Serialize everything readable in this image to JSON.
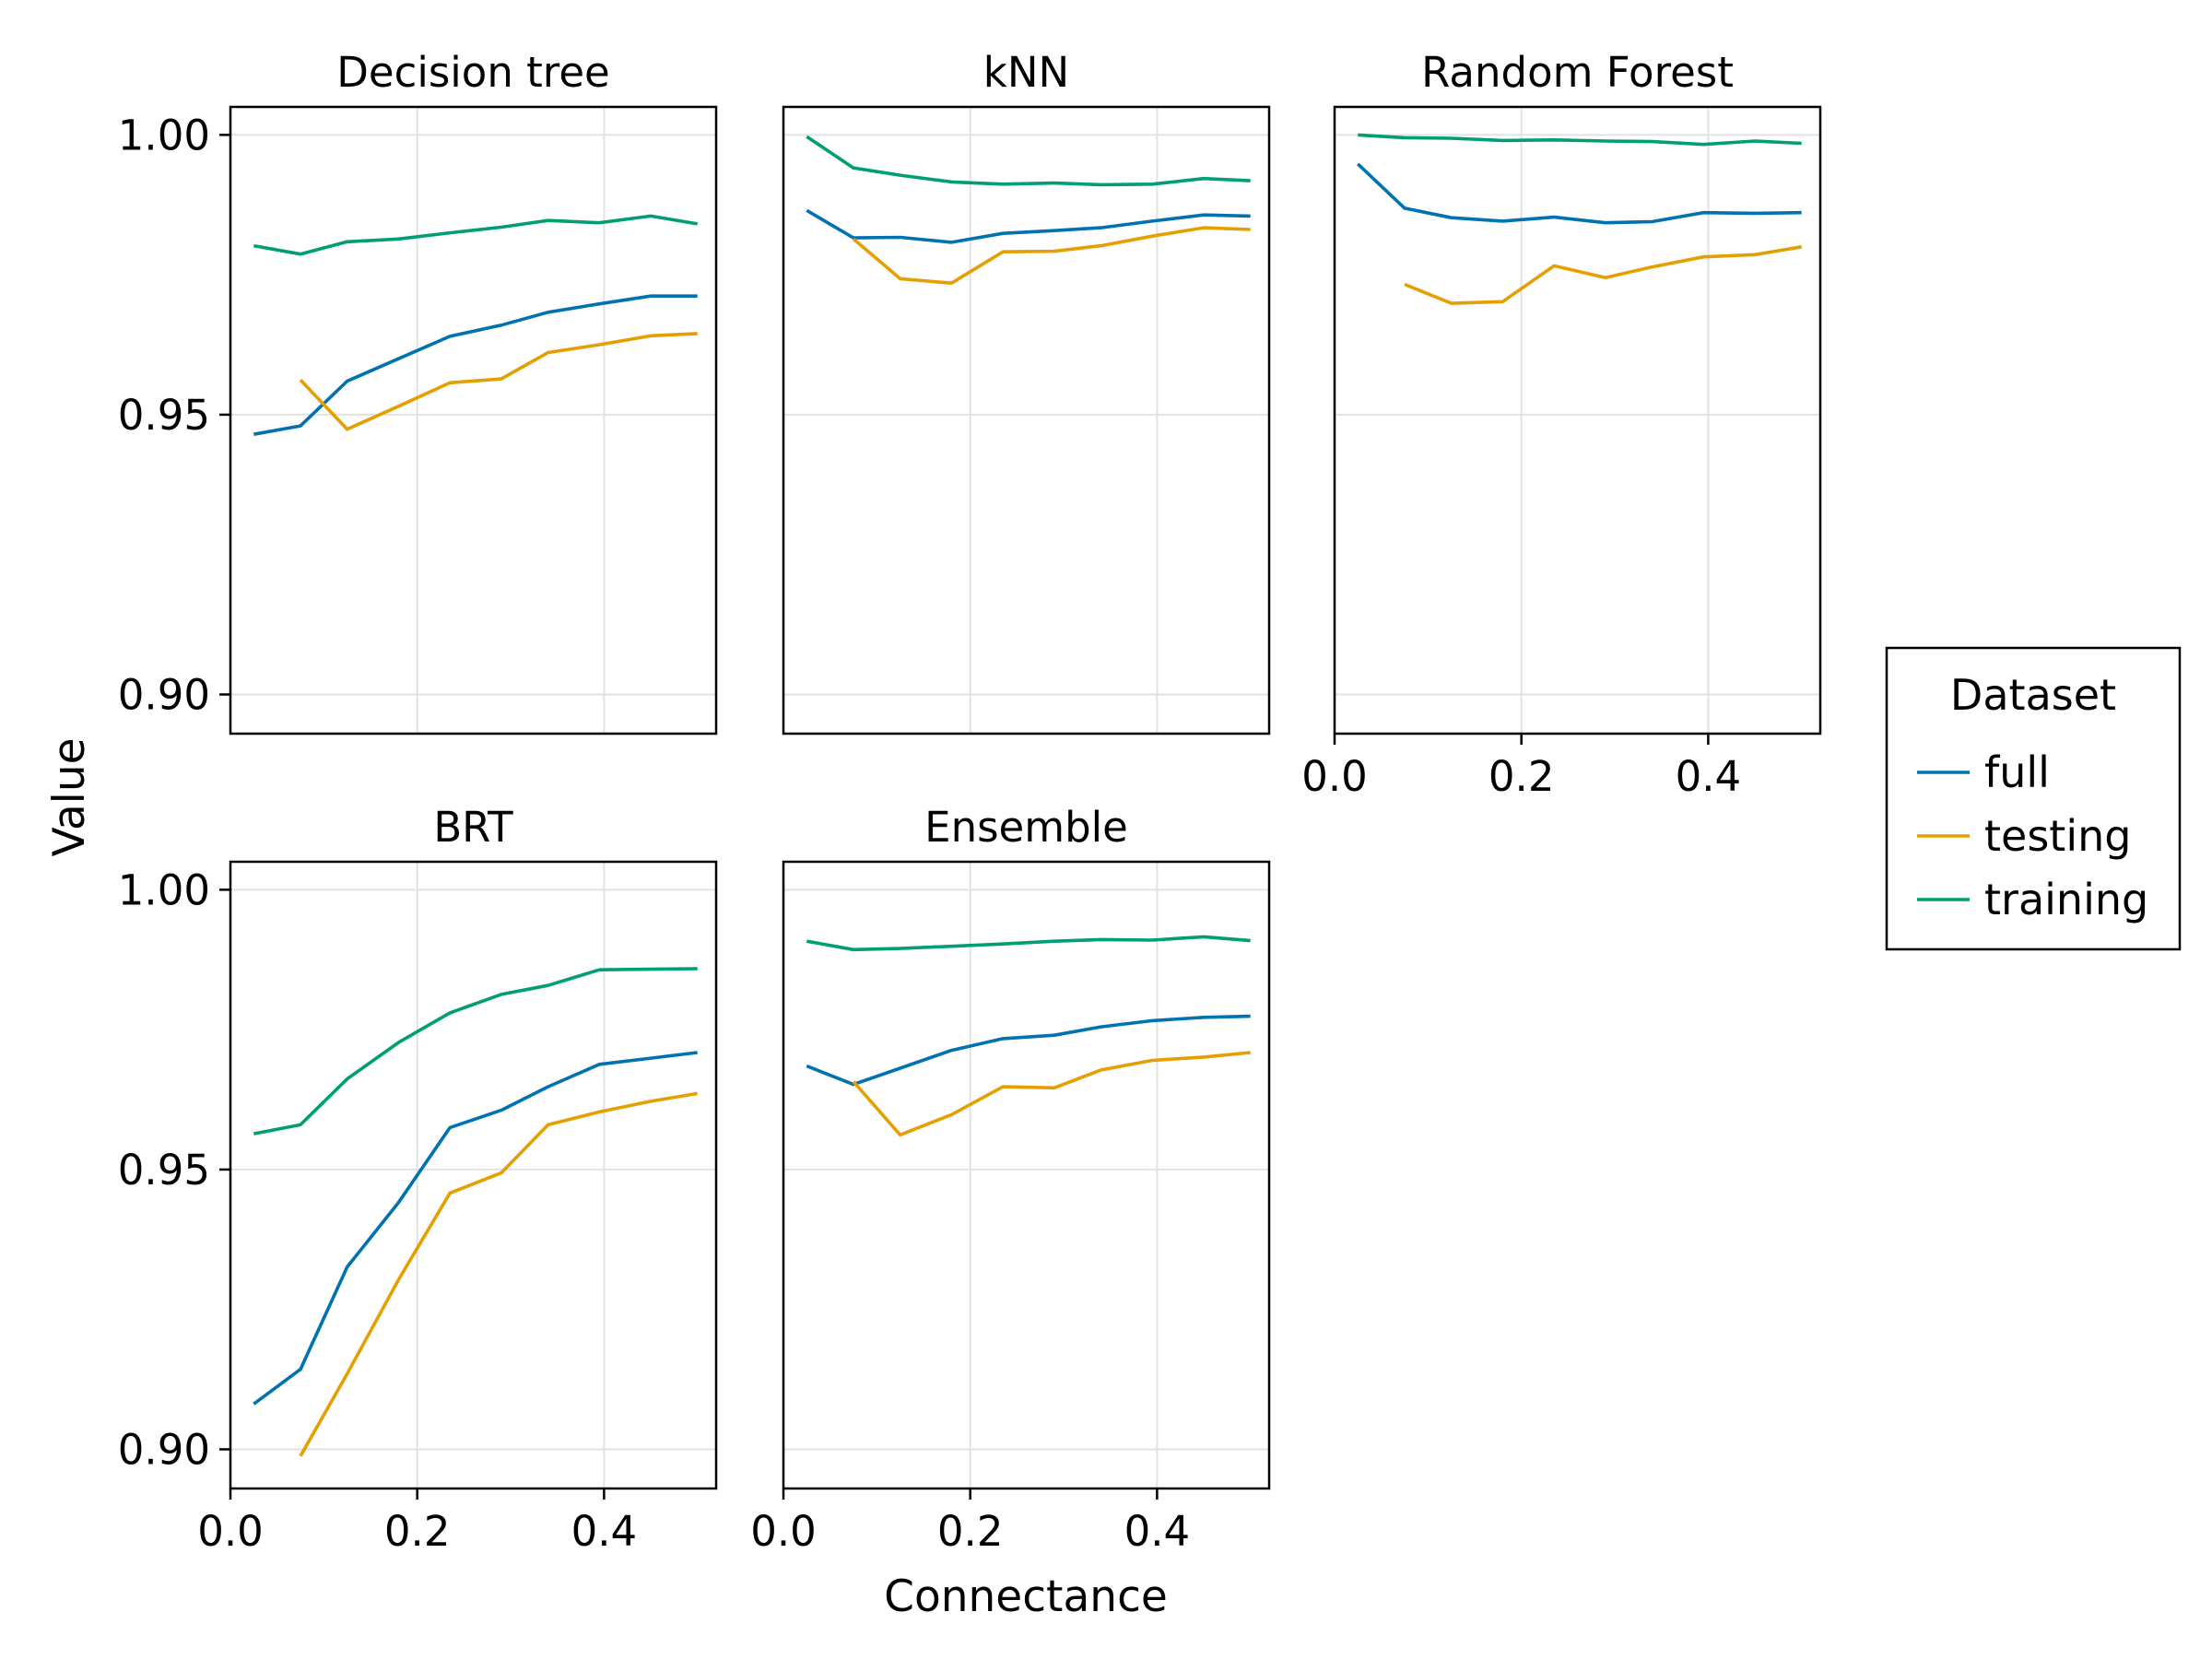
{
  "chart_data": {
    "type": "line",
    "layout": "facet-grid 2x3 (5 panels)",
    "xlabel": "Connectance",
    "ylabel": "Value",
    "xlim": [
      0.0,
      0.52
    ],
    "ylim": [
      0.893,
      1.005
    ],
    "x_ticks": [
      0.0,
      0.2,
      0.4
    ],
    "x_tick_labels": [
      "0.0",
      "0.2",
      "0.4"
    ],
    "y_ticks": [
      0.9,
      0.95,
      1.0
    ],
    "y_tick_labels": [
      "0.90",
      "0.95",
      "1.00"
    ],
    "grid": true,
    "legend": {
      "title": "Dataset",
      "placement": "right",
      "entries": [
        {
          "name": "full",
          "color": "#0072b2"
        },
        {
          "name": "testing",
          "color": "#e69f00"
        },
        {
          "name": "training",
          "color": "#009e73"
        }
      ]
    },
    "x": [
      0.025,
      0.075,
      0.125,
      0.18,
      0.235,
      0.29,
      0.34,
      0.395,
      0.45,
      0.5
    ],
    "panels": [
      {
        "title": "Decision tree",
        "series": [
          {
            "name": "full",
            "values": [
              0.9465,
              0.948,
              0.956,
              0.96,
              0.964,
              0.966,
              0.9683,
              0.9698,
              0.9712,
              0.9712
            ]
          },
          {
            "name": "testing",
            "values": [
              null,
              0.9562,
              0.9474,
              0.9515,
              0.9557,
              0.9564,
              0.9611,
              0.9625,
              0.9641,
              0.9645
            ]
          },
          {
            "name": "training",
            "values": [
              0.9802,
              0.9787,
              0.9809,
              0.9814,
              0.9825,
              0.9835,
              0.9847,
              0.9843,
              0.9855,
              0.9841
            ]
          }
        ]
      },
      {
        "title": "kNN",
        "series": [
          {
            "name": "full",
            "values": [
              0.9865,
              0.9816,
              0.9817,
              0.9808,
              0.9824,
              0.9829,
              0.9834,
              0.9846,
              0.9857,
              0.9855
            ]
          },
          {
            "name": "testing",
            "values": [
              null,
              0.9814,
              0.9743,
              0.9735,
              0.9791,
              0.9792,
              0.9802,
              0.9819,
              0.9834,
              0.9831
            ]
          },
          {
            "name": "training",
            "values": [
              0.9997,
              0.9941,
              0.9928,
              0.9916,
              0.9912,
              0.9914,
              0.9911,
              0.9912,
              0.9922,
              0.9918
            ]
          }
        ]
      },
      {
        "title": "Random Forest",
        "series": [
          {
            "name": "full",
            "values": [
              0.9948,
              0.9869,
              0.9852,
              0.9846,
              0.9853,
              0.9843,
              0.9845,
              0.9861,
              0.986,
              0.9861
            ]
          },
          {
            "name": "testing",
            "values": [
              null,
              0.9733,
              0.9699,
              0.9702,
              0.9766,
              0.9745,
              0.9764,
              0.9782,
              0.9786,
              0.98
            ]
          },
          {
            "name": "training",
            "values": [
              1.0,
              0.9995,
              0.9994,
              0.999,
              0.9991,
              0.9989,
              0.9988,
              0.9983,
              0.9989,
              0.9985
            ]
          }
        ]
      },
      {
        "title": "BRT",
        "series": [
          {
            "name": "full",
            "values": [
              0.9081,
              0.9143,
              0.9326,
              0.9441,
              0.9575,
              0.9606,
              0.9648,
              0.9688,
              0.9699,
              0.9709
            ]
          },
          {
            "name": "testing",
            "values": [
              null,
              0.8988,
              0.9135,
              0.9303,
              0.9458,
              0.9494,
              0.958,
              0.9603,
              0.9622,
              0.9636
            ]
          },
          {
            "name": "training",
            "values": [
              0.9564,
              0.958,
              0.9662,
              0.9727,
              0.978,
              0.9813,
              0.9829,
              0.9857,
              0.9858,
              0.9859
            ]
          }
        ]
      },
      {
        "title": "Ensemble",
        "series": [
          {
            "name": "full",
            "values": [
              0.9685,
              0.9652,
              0.9681,
              0.9713,
              0.9734,
              0.974,
              0.9755,
              0.9766,
              0.9772,
              0.9774
            ]
          },
          {
            "name": "testing",
            "values": [
              null,
              0.9657,
              0.9562,
              0.9598,
              0.9648,
              0.9646,
              0.9678,
              0.9695,
              0.9701,
              0.9709
            ]
          },
          {
            "name": "training",
            "values": [
              0.9908,
              0.9893,
              0.9895,
              0.9899,
              0.9903,
              0.9908,
              0.9911,
              0.991,
              0.9916,
              0.9909
            ]
          }
        ]
      }
    ]
  }
}
